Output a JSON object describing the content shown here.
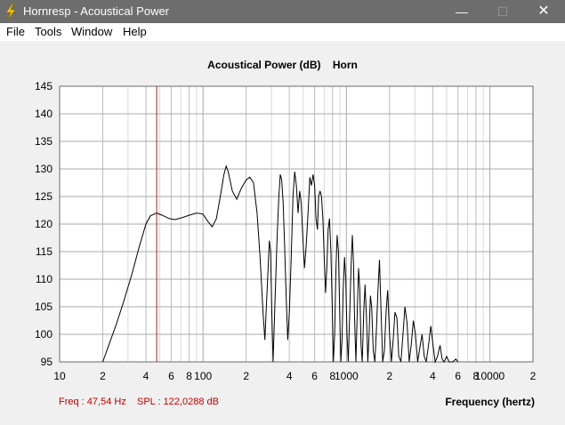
{
  "window": {
    "title": "Hornresp - Acoustical Power",
    "minimize_glyph": "—",
    "maximize_glyph": "☐",
    "close_glyph": "✕"
  },
  "menu": [
    "File",
    "Tools",
    "Window",
    "Help"
  ],
  "colors": {
    "titlebar": "#6d6d6d",
    "cursor_line": "#b22222",
    "readout_text": "#c00000",
    "grid_major": "#a8a8a8",
    "grid_minor": "#d8d8d8"
  },
  "readout": {
    "freq": "Freq : 47,54 Hz",
    "spl": "SPL : 122,0288 dB"
  },
  "chart_data": {
    "type": "line",
    "title": "Acoustical Power (dB)    Horn",
    "xlabel": "Frequency (hertz)",
    "ylabel": "",
    "x_scale": "log",
    "xlim": [
      10,
      20000
    ],
    "ylim": [
      95,
      145
    ],
    "y_ticks": [
      145,
      140,
      135,
      130,
      125,
      120,
      115,
      110,
      105,
      100,
      95
    ],
    "x_tick_labels": [
      {
        "f": 10,
        "label": "10"
      },
      {
        "f": 20,
        "label": "2"
      },
      {
        "f": 40,
        "label": "4"
      },
      {
        "f": 60,
        "label": "6"
      },
      {
        "f": 80,
        "label": "8"
      },
      {
        "f": 100,
        "label": "100"
      },
      {
        "f": 200,
        "label": "2"
      },
      {
        "f": 400,
        "label": "4"
      },
      {
        "f": 600,
        "label": "6"
      },
      {
        "f": 800,
        "label": "8"
      },
      {
        "f": 1000,
        "label": "1000"
      },
      {
        "f": 2000,
        "label": "2"
      },
      {
        "f": 4000,
        "label": "4"
      },
      {
        "f": 6000,
        "label": "6"
      },
      {
        "f": 8000,
        "label": "8"
      },
      {
        "f": 10000,
        "label": "10000"
      },
      {
        "f": 20000,
        "label": "2"
      }
    ],
    "grid": true,
    "cursor_freq": 47.54,
    "series": [
      {
        "points": [
          [
            20,
            95
          ],
          [
            22,
            98
          ],
          [
            25,
            102
          ],
          [
            28,
            106
          ],
          [
            32,
            111
          ],
          [
            36,
            116
          ],
          [
            40,
            120
          ],
          [
            43,
            121.5
          ],
          [
            47.5,
            122
          ],
          [
            52,
            121.6
          ],
          [
            58,
            121
          ],
          [
            64,
            120.8
          ],
          [
            72,
            121.2
          ],
          [
            80,
            121.6
          ],
          [
            90,
            122
          ],
          [
            100,
            121.8
          ],
          [
            108,
            120.5
          ],
          [
            116,
            119.5
          ],
          [
            124,
            121
          ],
          [
            132,
            125
          ],
          [
            140,
            129
          ],
          [
            145,
            130.5
          ],
          [
            150,
            129.5
          ],
          [
            160,
            126
          ],
          [
            172,
            124.5
          ],
          [
            185,
            126.5
          ],
          [
            200,
            128
          ],
          [
            212,
            128.5
          ],
          [
            225,
            127.5
          ],
          [
            238,
            122
          ],
          [
            250,
            114
          ],
          [
            262,
            104
          ],
          [
            270,
            99
          ],
          [
            280,
            108
          ],
          [
            290,
            117
          ],
          [
            296,
            115
          ],
          [
            302,
            104
          ],
          [
            308,
            95
          ],
          [
            318,
            106
          ],
          [
            328,
            117
          ],
          [
            338,
            125
          ],
          [
            346,
            129
          ],
          [
            354,
            128
          ],
          [
            362,
            124
          ],
          [
            370,
            117
          ],
          [
            380,
            107
          ],
          [
            390,
            99
          ],
          [
            400,
            104
          ],
          [
            412,
            114
          ],
          [
            424,
            125
          ],
          [
            436,
            129.5
          ],
          [
            448,
            127
          ],
          [
            460,
            122
          ],
          [
            472,
            126
          ],
          [
            484,
            124
          ],
          [
            496,
            118
          ],
          [
            510,
            112
          ],
          [
            524,
            116
          ],
          [
            540,
            122
          ],
          [
            556,
            128.5
          ],
          [
            570,
            127
          ],
          [
            586,
            129
          ],
          [
            600,
            127
          ],
          [
            614,
            121
          ],
          [
            628,
            119
          ],
          [
            640,
            125
          ],
          [
            655,
            126
          ],
          [
            670,
            125
          ],
          [
            686,
            121
          ],
          [
            700,
            114
          ],
          [
            716,
            107.5
          ],
          [
            730,
            112
          ],
          [
            746,
            119
          ],
          [
            762,
            121
          ],
          [
            780,
            115
          ],
          [
            796,
            105
          ],
          [
            812,
            95
          ],
          [
            828,
            100
          ],
          [
            846,
            112
          ],
          [
            862,
            118
          ],
          [
            880,
            115
          ],
          [
            900,
            103
          ],
          [
            915,
            95
          ],
          [
            932,
            99
          ],
          [
            950,
            108
          ],
          [
            970,
            114
          ],
          [
            990,
            110
          ],
          [
            1010,
            100
          ],
          [
            1030,
            95
          ],
          [
            1055,
            104
          ],
          [
            1080,
            113
          ],
          [
            1100,
            118
          ],
          [
            1120,
            113
          ],
          [
            1140,
            103
          ],
          [
            1165,
            95
          ],
          [
            1190,
            104
          ],
          [
            1215,
            112
          ],
          [
            1240,
            108
          ],
          [
            1265,
            98
          ],
          [
            1290,
            95
          ],
          [
            1320,
            104
          ],
          [
            1350,
            109
          ],
          [
            1380,
            103
          ],
          [
            1410,
            95
          ],
          [
            1440,
            100
          ],
          [
            1470,
            107
          ],
          [
            1500,
            105
          ],
          [
            1540,
            97
          ],
          [
            1580,
            95
          ],
          [
            1620,
            101
          ],
          [
            1660,
            108
          ],
          [
            1700,
            113.5
          ],
          [
            1740,
            105
          ],
          [
            1790,
            95
          ],
          [
            1840,
            97
          ],
          [
            1890,
            104
          ],
          [
            1940,
            108
          ],
          [
            2000,
            100
          ],
          [
            2060,
            95
          ],
          [
            2120,
            99
          ],
          [
            2180,
            104
          ],
          [
            2250,
            103
          ],
          [
            2320,
            96
          ],
          [
            2400,
            95
          ],
          [
            2480,
            100
          ],
          [
            2560,
            105
          ],
          [
            2650,
            102
          ],
          [
            2740,
            95
          ],
          [
            2830,
            98
          ],
          [
            2930,
            102.5
          ],
          [
            3030,
            100
          ],
          [
            3140,
            95
          ],
          [
            3250,
            97.5
          ],
          [
            3370,
            100
          ],
          [
            3490,
            96
          ],
          [
            3600,
            95
          ],
          [
            3740,
            98
          ],
          [
            3880,
            101.5
          ],
          [
            4020,
            98
          ],
          [
            4160,
            95
          ],
          [
            4320,
            96
          ],
          [
            4500,
            98
          ],
          [
            4650,
            95.5
          ],
          [
            4800,
            95
          ],
          [
            5000,
            96
          ],
          [
            5200,
            95
          ],
          [
            5500,
            95
          ],
          [
            5800,
            95.5
          ],
          [
            6000,
            95
          ]
        ]
      }
    ]
  }
}
